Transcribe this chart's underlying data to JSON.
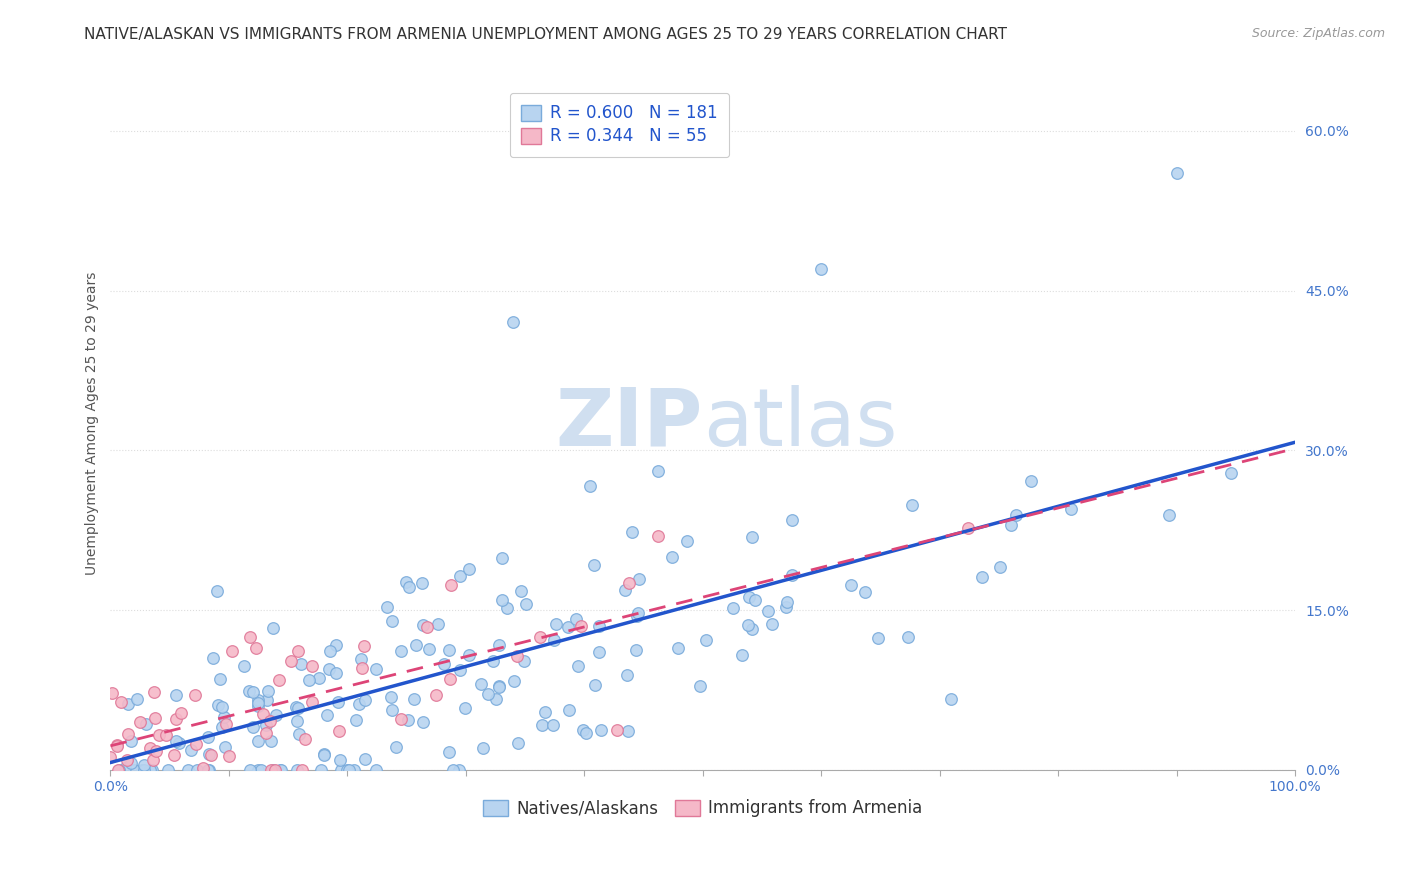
{
  "title": "NATIVE/ALASKAN VS IMMIGRANTS FROM ARMENIA UNEMPLOYMENT AMONG AGES 25 TO 29 YEARS CORRELATION CHART",
  "source": "Source: ZipAtlas.com",
  "ylabel": "Unemployment Among Ages 25 to 29 years",
  "xlim": [
    0,
    1.0
  ],
  "ylim": [
    0,
    0.65
  ],
  "xticks": [
    0.0,
    0.1,
    0.2,
    0.3,
    0.4,
    0.5,
    0.6,
    0.7,
    0.8,
    0.9,
    1.0
  ],
  "xtick_labels_show": [
    "0.0%",
    "",
    "",
    "",
    "",
    "",
    "",
    "",
    "",
    "",
    "100.0%"
  ],
  "ytick_positions": [
    0.0,
    0.15,
    0.3,
    0.45,
    0.6
  ],
  "ytick_labels": [
    "0.0%",
    "15.0%",
    "30.0%",
    "45.0%",
    "60.0%"
  ],
  "native_R": 0.6,
  "native_N": 181,
  "armenia_R": 0.344,
  "armenia_N": 55,
  "native_color": "#b8d4f0",
  "native_edge_color": "#7aabdb",
  "armenia_color": "#f5b8c8",
  "armenia_edge_color": "#e07898",
  "trendline_native_color": "#2255cc",
  "trendline_armenia_color": "#dd4477",
  "watermark_color": "#d0dff0",
  "background_color": "#ffffff",
  "grid_color": "#dddddd",
  "axis_tick_color": "#4477cc",
  "legend_text_color": "#2255cc",
  "title_fontsize": 11,
  "axis_label_fontsize": 10,
  "tick_fontsize": 10,
  "legend_fontsize": 12,
  "marker_size": 70,
  "native_slope": 0.3,
  "native_intercept": 0.0,
  "armenia_slope": 0.28,
  "armenia_intercept": 0.02,
  "native_seed": 42,
  "armenia_seed": 7
}
